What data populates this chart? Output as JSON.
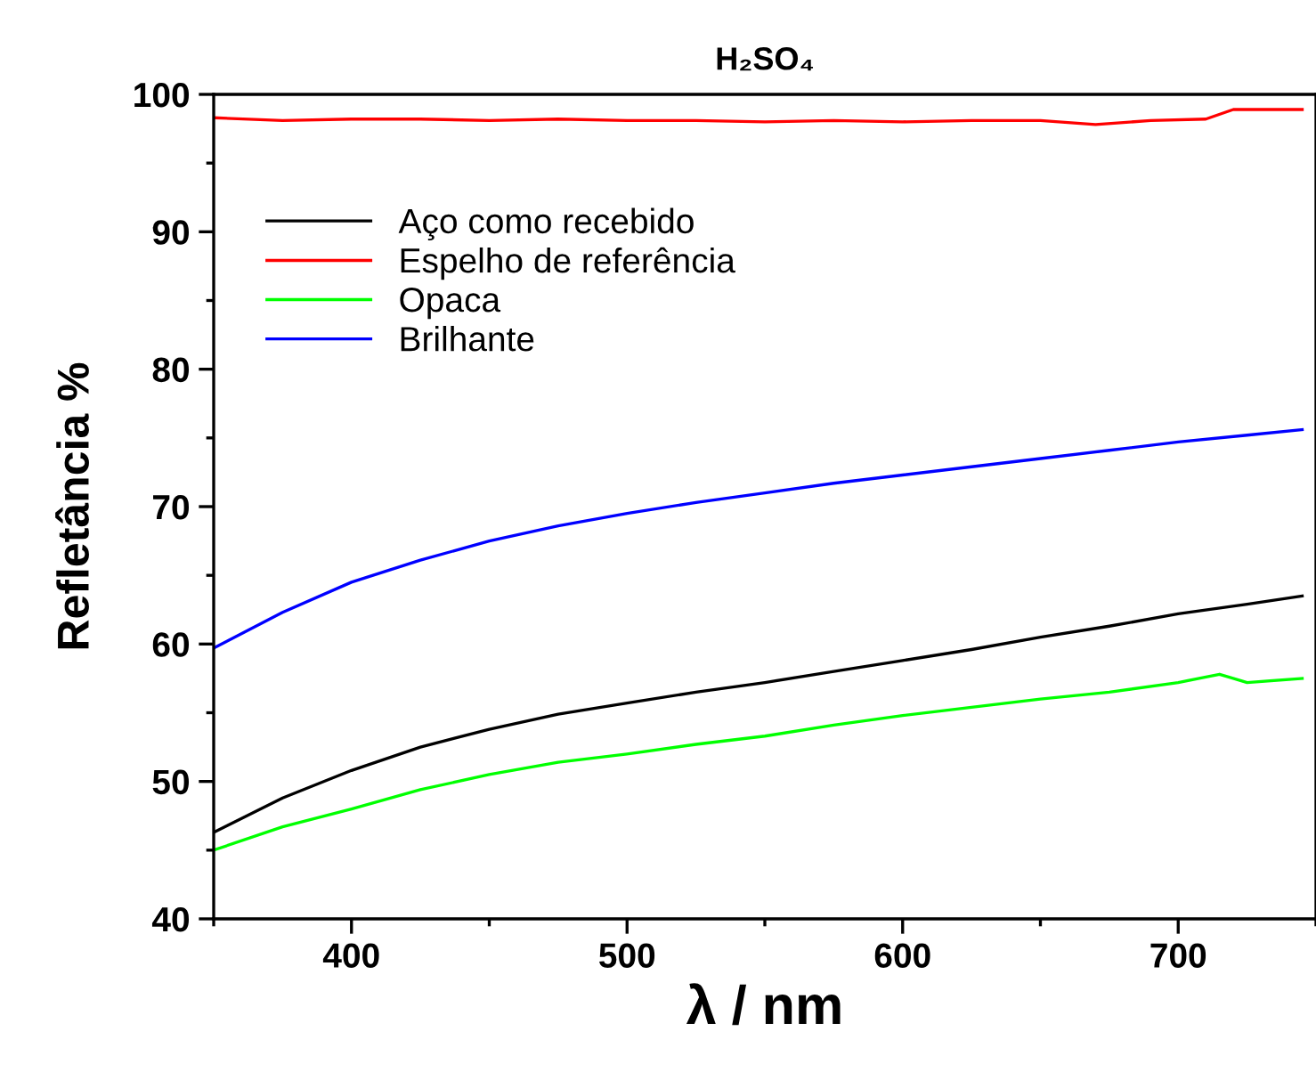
{
  "chart_data": {
    "type": "line",
    "title": "H₂SO₄",
    "xlabel": "λ / nm",
    "ylabel": "Refletância %",
    "xlim": [
      350,
      750
    ],
    "xticks": [
      400,
      500,
      600,
      700
    ],
    "ylim": [
      40,
      100
    ],
    "yticks": [
      40,
      50,
      60,
      70,
      80,
      90,
      100
    ],
    "grid": false,
    "legend": "top left",
    "marker": "none",
    "line_style": "solid",
    "series": [
      {
        "name": "Aço como recebido",
        "color": "#000000",
        "x": [
          350,
          375,
          400,
          425,
          450,
          475,
          500,
          525,
          550,
          575,
          600,
          625,
          650,
          675,
          700,
          725,
          745
        ],
        "values": [
          46.3,
          48.8,
          50.8,
          52.5,
          53.8,
          54.9,
          55.7,
          56.5,
          57.2,
          58.0,
          58.8,
          59.6,
          60.5,
          61.3,
          62.2,
          62.9,
          63.5
        ]
      },
      {
        "name": "Espelho de referência",
        "color": "#ff0000",
        "x": [
          350,
          375,
          400,
          425,
          450,
          475,
          500,
          525,
          550,
          575,
          600,
          625,
          650,
          670,
          690,
          710,
          720,
          745
        ],
        "values": [
          98.3,
          98.1,
          98.2,
          98.2,
          98.1,
          98.2,
          98.1,
          98.1,
          98.0,
          98.1,
          98.0,
          98.1,
          98.1,
          97.8,
          98.1,
          98.2,
          98.9,
          98.9
        ]
      },
      {
        "name": "Opaca",
        "color": "#00ff00",
        "x": [
          350,
          375,
          400,
          425,
          450,
          475,
          500,
          525,
          550,
          575,
          600,
          625,
          650,
          675,
          700,
          715,
          725,
          745
        ],
        "values": [
          45.0,
          46.7,
          48.0,
          49.4,
          50.5,
          51.4,
          52.0,
          52.7,
          53.3,
          54.1,
          54.8,
          55.4,
          56.0,
          56.5,
          57.2,
          57.8,
          57.2,
          57.5
        ]
      },
      {
        "name": "Brilhante",
        "color": "#0000ff",
        "x": [
          350,
          375,
          400,
          425,
          450,
          475,
          500,
          525,
          550,
          575,
          600,
          625,
          650,
          675,
          700,
          725,
          745
        ],
        "values": [
          59.7,
          62.3,
          64.5,
          66.1,
          67.5,
          68.6,
          69.5,
          70.3,
          71.0,
          71.7,
          72.3,
          72.9,
          73.5,
          74.1,
          74.7,
          75.2,
          75.6
        ]
      }
    ]
  }
}
